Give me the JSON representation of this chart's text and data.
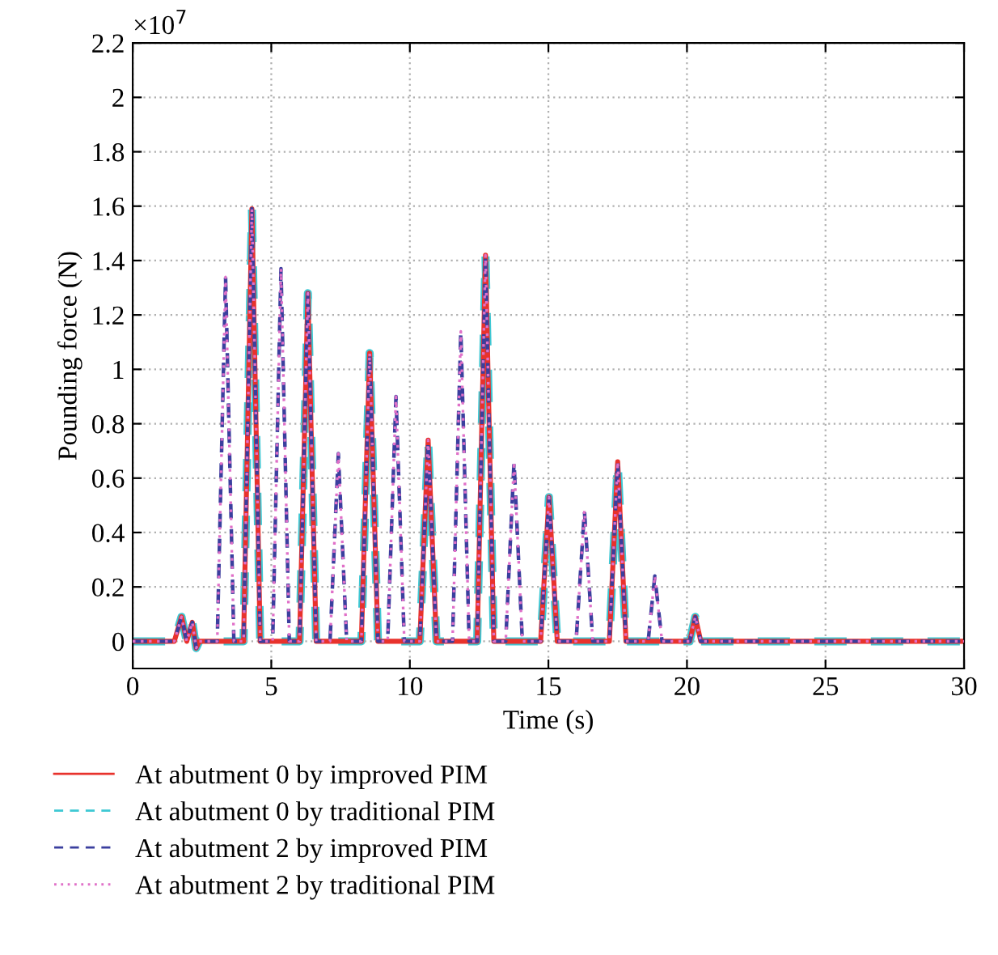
{
  "chart_data": {
    "type": "line",
    "xlabel": "Time (s)",
    "ylabel": "Pounding force (N)",
    "annotations": [
      "×10$^{7}$"
    ],
    "xlim": [
      0,
      30
    ],
    "xticks": [
      0,
      5,
      10,
      15,
      20,
      25,
      30
    ],
    "ylim": [
      -0.1,
      2.2
    ],
    "yticks": [
      0,
      0.2,
      0.4,
      0.6,
      0.8,
      1,
      1.2,
      1.4,
      1.6,
      1.8,
      2,
      2.2
    ],
    "grid": true,
    "legend": "bottom",
    "marker": "none",
    "series": [
      {
        "name": "At abutment 0 by improved PIM",
        "color": "#e8322c",
        "line_style": "solid",
        "x": [
          0,
          1.5,
          1.76,
          1.95,
          2.15,
          2.29,
          2.4,
          4.0,
          4.3,
          4.6,
          6.02,
          6.32,
          6.62,
          8.25,
          8.55,
          8.85,
          10.36,
          10.66,
          10.96,
          12.43,
          12.73,
          13.03,
          14.72,
          15.02,
          15.32,
          17.2,
          17.5,
          17.8,
          20.1,
          20.3,
          20.5,
          30
        ],
        "values": [
          0,
          0,
          0.09,
          0,
          0.07,
          -0.025,
          0,
          0,
          1.59,
          0,
          0,
          1.28,
          0,
          0,
          1.06,
          0,
          0,
          0.74,
          0,
          0,
          1.42,
          0,
          0,
          0.53,
          0,
          0,
          0.66,
          0,
          0,
          0.09,
          0,
          0
        ]
      },
      {
        "name": "At abutment 0 by traditional PIM",
        "color": "#3ec8d4",
        "line_style": "dashed",
        "x": [
          0,
          1.5,
          1.76,
          1.95,
          2.15,
          2.29,
          2.4,
          4.0,
          4.3,
          4.6,
          6.02,
          6.32,
          6.62,
          8.25,
          8.55,
          8.85,
          10.36,
          10.66,
          10.96,
          12.43,
          12.73,
          13.03,
          14.72,
          15.02,
          15.32,
          17.2,
          17.5,
          17.8,
          20.1,
          20.3,
          20.5,
          30
        ],
        "values": [
          0,
          0,
          0.09,
          0,
          0.07,
          -0.025,
          0,
          0,
          1.59,
          0,
          0,
          1.28,
          0,
          0,
          1.06,
          0,
          0,
          0.74,
          0,
          0,
          1.42,
          0,
          0,
          0.53,
          0,
          0,
          0.66,
          0,
          0,
          0.09,
          0,
          0
        ]
      },
      {
        "name": "At abutment 2 by improved PIM",
        "color": "#3a3f9e",
        "line_style": "dashed",
        "x": [
          0,
          1.5,
          1.76,
          1.95,
          2.15,
          2.29,
          2.4,
          3.05,
          3.35,
          3.65,
          4.0,
          4.3,
          4.6,
          5.05,
          5.35,
          5.65,
          6.02,
          6.32,
          6.62,
          7.12,
          7.42,
          7.72,
          8.25,
          8.55,
          8.85,
          9.2,
          9.5,
          9.8,
          10.36,
          10.66,
          10.96,
          11.54,
          11.84,
          12.14,
          12.43,
          12.73,
          13.03,
          13.46,
          13.76,
          14.06,
          14.72,
          15.02,
          15.32,
          16.0,
          16.3,
          16.6,
          17.2,
          17.5,
          17.8,
          18.6,
          18.84,
          19.1,
          20.1,
          20.3,
          20.5,
          30
        ],
        "values": [
          0,
          0,
          0.09,
          0,
          0.07,
          -0.025,
          0,
          0,
          1.34,
          0,
          0,
          1.59,
          0,
          0,
          1.37,
          0,
          0,
          1.28,
          0,
          0,
          0.69,
          0,
          0,
          1.06,
          0,
          0,
          0.9,
          0,
          0,
          0.74,
          0,
          0,
          1.14,
          0,
          0,
          1.42,
          0,
          0,
          0.66,
          0,
          0,
          0.53,
          0,
          0,
          0.48,
          0,
          0,
          0.66,
          0,
          0,
          0.24,
          0,
          0,
          0.09,
          0,
          0
        ]
      },
      {
        "name": "At abutment 2 by traditional PIM",
        "color": "#e070c8",
        "line_style": "dotted",
        "x": [
          0,
          1.5,
          1.76,
          1.95,
          2.15,
          2.29,
          2.4,
          3.05,
          3.35,
          3.65,
          4.0,
          4.3,
          4.6,
          5.05,
          5.35,
          5.65,
          6.02,
          6.32,
          6.62,
          7.12,
          7.42,
          7.72,
          8.25,
          8.55,
          8.85,
          9.2,
          9.5,
          9.8,
          10.36,
          10.66,
          10.96,
          11.54,
          11.84,
          12.14,
          12.43,
          12.73,
          13.03,
          13.46,
          13.76,
          14.06,
          14.72,
          15.02,
          15.32,
          16.0,
          16.3,
          16.6,
          17.2,
          17.5,
          17.8,
          18.6,
          18.84,
          19.1,
          20.1,
          20.3,
          20.5,
          30
        ],
        "values": [
          0,
          0,
          0.09,
          0,
          0.07,
          -0.025,
          0,
          0,
          1.34,
          0,
          0,
          1.59,
          0,
          0,
          1.37,
          0,
          0,
          1.28,
          0,
          0,
          0.69,
          0,
          0,
          1.06,
          0,
          0,
          0.9,
          0,
          0,
          0.74,
          0,
          0,
          1.14,
          0,
          0,
          1.42,
          0,
          0,
          0.66,
          0,
          0,
          0.53,
          0,
          0,
          0.48,
          0,
          0,
          0.66,
          0,
          0,
          0.24,
          0,
          0,
          0.09,
          0,
          0
        ]
      }
    ]
  }
}
